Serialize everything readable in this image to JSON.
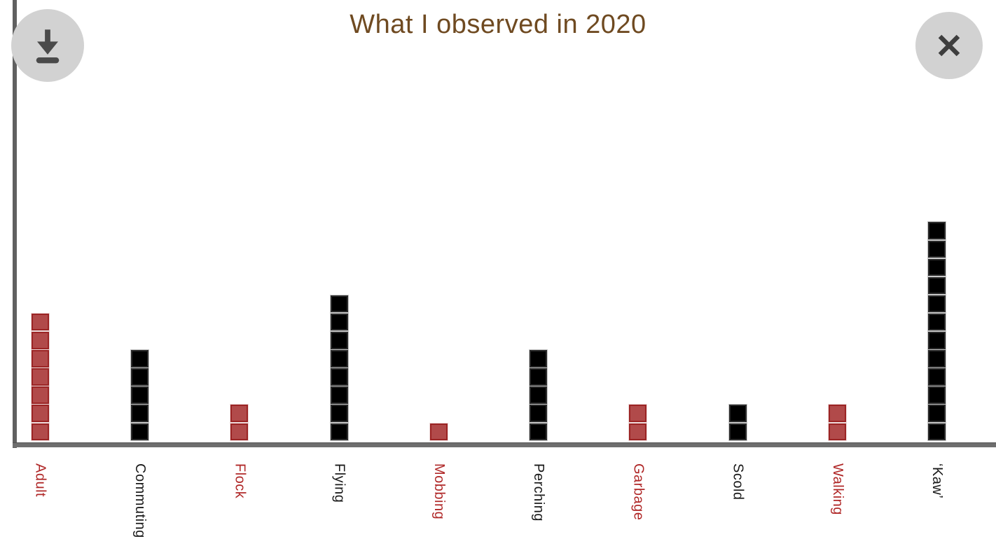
{
  "header": {
    "buttons": {
      "download": {
        "icon": "download-icon"
      },
      "close": {
        "icon": "close-icon"
      }
    }
  },
  "chart_data": {
    "type": "bar",
    "variant": "unit_square_pictograph",
    "title": "What I observed in 2020",
    "categories": [
      "Adult",
      "Commuting",
      "Flock",
      "Flying",
      "Mobbing",
      "Perching",
      "Garbage",
      "Scold",
      "Walking",
      "‘Kaw’"
    ],
    "values": [
      7,
      5,
      2,
      8,
      1,
      5,
      2,
      2,
      2,
      12
    ],
    "category_palette": [
      "red",
      "black",
      "red",
      "black",
      "red",
      "black",
      "red",
      "black",
      "red",
      "black"
    ],
    "unit_per_square": 1,
    "xlabel": "",
    "ylabel": "",
    "grid": false,
    "legend": false,
    "y_axis_ticks": "none",
    "ylim": [
      0,
      12
    ]
  },
  "palette": {
    "red": {
      "fill": "#b14a4a",
      "border": "#9b2424",
      "halo": "#eedcdc",
      "label": "#b02828"
    },
    "black": {
      "fill": "#000000",
      "border": "#2a2a2a",
      "halo": "#c9c9c9",
      "label": "#1a1a1a"
    }
  },
  "colors": {
    "axis": "#6e6e6e",
    "title": "#6f4a21",
    "button_bg": "#d2d2d2",
    "button_icon": "#4a4a4a",
    "background": "#ffffff"
  }
}
